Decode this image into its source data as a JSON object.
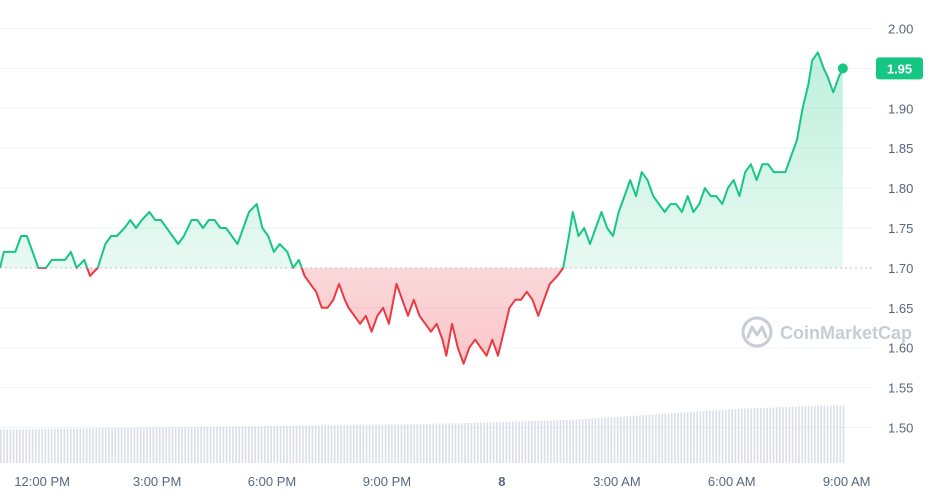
{
  "chart_data": {
    "type": "area",
    "baseline": 1.7,
    "current_price": "1.95",
    "ylim": [
      1.45,
      2.02
    ],
    "y_ticks": [
      "2.00",
      "1.95",
      "1.90",
      "1.85",
      "1.80",
      "1.75",
      "1.70",
      "1.65",
      "1.60",
      "1.55",
      "1.50"
    ],
    "x_ticks": [
      {
        "label": "12:00 PM",
        "hour": 1.1
      },
      {
        "label": "3:00 PM",
        "hour": 4.1
      },
      {
        "label": "6:00 PM",
        "hour": 7.1
      },
      {
        "label": "9:00 PM",
        "hour": 10.1
      },
      {
        "label": "8",
        "hour": 13.1,
        "bold": true
      },
      {
        "label": "3:00 AM",
        "hour": 16.1
      },
      {
        "label": "6:00 AM",
        "hour": 19.1
      },
      {
        "label": "9:00 AM",
        "hour": 22.1
      }
    ],
    "series": [
      {
        "points": [
          [
            0,
            1.7
          ],
          [
            0.1,
            1.72
          ],
          [
            0.25,
            1.72
          ],
          [
            0.4,
            1.72
          ],
          [
            0.55,
            1.74
          ],
          [
            0.7,
            1.74
          ],
          [
            0.85,
            1.72
          ],
          [
            1.0,
            1.7
          ],
          [
            1.2,
            1.7
          ],
          [
            1.35,
            1.71
          ],
          [
            1.5,
            1.71
          ],
          [
            1.7,
            1.71
          ],
          [
            1.85,
            1.72
          ],
          [
            2.0,
            1.7
          ],
          [
            2.2,
            1.71
          ],
          [
            2.35,
            1.69
          ],
          [
            2.55,
            1.7
          ],
          [
            2.75,
            1.73
          ],
          [
            2.9,
            1.74
          ],
          [
            3.05,
            1.74
          ],
          [
            3.25,
            1.75
          ],
          [
            3.4,
            1.76
          ],
          [
            3.55,
            1.75
          ],
          [
            3.7,
            1.76
          ],
          [
            3.9,
            1.77
          ],
          [
            4.05,
            1.76
          ],
          [
            4.2,
            1.76
          ],
          [
            4.35,
            1.75
          ],
          [
            4.5,
            1.74
          ],
          [
            4.65,
            1.73
          ],
          [
            4.8,
            1.74
          ],
          [
            5.0,
            1.76
          ],
          [
            5.15,
            1.76
          ],
          [
            5.3,
            1.75
          ],
          [
            5.45,
            1.76
          ],
          [
            5.6,
            1.76
          ],
          [
            5.75,
            1.75
          ],
          [
            5.9,
            1.75
          ],
          [
            6.05,
            1.74
          ],
          [
            6.2,
            1.73
          ],
          [
            6.35,
            1.75
          ],
          [
            6.5,
            1.77
          ],
          [
            6.7,
            1.78
          ],
          [
            6.85,
            1.75
          ],
          [
            7.0,
            1.74
          ],
          [
            7.15,
            1.72
          ],
          [
            7.3,
            1.73
          ],
          [
            7.5,
            1.72
          ],
          [
            7.65,
            1.7
          ],
          [
            7.8,
            1.71
          ],
          [
            7.95,
            1.69
          ],
          [
            8.1,
            1.68
          ],
          [
            8.25,
            1.67
          ],
          [
            8.4,
            1.65
          ],
          [
            8.55,
            1.65
          ],
          [
            8.7,
            1.66
          ],
          [
            8.85,
            1.68
          ],
          [
            9.0,
            1.66
          ],
          [
            9.1,
            1.65
          ],
          [
            9.25,
            1.64
          ],
          [
            9.4,
            1.63
          ],
          [
            9.55,
            1.64
          ],
          [
            9.7,
            1.62
          ],
          [
            9.85,
            1.64
          ],
          [
            10.0,
            1.65
          ],
          [
            10.15,
            1.63
          ],
          [
            10.35,
            1.68
          ],
          [
            10.5,
            1.66
          ],
          [
            10.65,
            1.64
          ],
          [
            10.8,
            1.66
          ],
          [
            10.95,
            1.64
          ],
          [
            11.1,
            1.63
          ],
          [
            11.25,
            1.62
          ],
          [
            11.4,
            1.63
          ],
          [
            11.55,
            1.61
          ],
          [
            11.65,
            1.59
          ],
          [
            11.8,
            1.63
          ],
          [
            11.95,
            1.6
          ],
          [
            12.1,
            1.58
          ],
          [
            12.25,
            1.6
          ],
          [
            12.4,
            1.61
          ],
          [
            12.55,
            1.6
          ],
          [
            12.7,
            1.59
          ],
          [
            12.85,
            1.61
          ],
          [
            13.0,
            1.59
          ],
          [
            13.15,
            1.62
          ],
          [
            13.3,
            1.65
          ],
          [
            13.45,
            1.66
          ],
          [
            13.6,
            1.66
          ],
          [
            13.75,
            1.67
          ],
          [
            13.9,
            1.66
          ],
          [
            14.05,
            1.64
          ],
          [
            14.2,
            1.66
          ],
          [
            14.35,
            1.68
          ],
          [
            14.55,
            1.69
          ],
          [
            14.7,
            1.7
          ],
          [
            14.85,
            1.74
          ],
          [
            14.95,
            1.77
          ],
          [
            15.1,
            1.74
          ],
          [
            15.25,
            1.75
          ],
          [
            15.4,
            1.73
          ],
          [
            15.55,
            1.75
          ],
          [
            15.7,
            1.77
          ],
          [
            15.85,
            1.75
          ],
          [
            16.0,
            1.74
          ],
          [
            16.15,
            1.77
          ],
          [
            16.3,
            1.79
          ],
          [
            16.45,
            1.81
          ],
          [
            16.6,
            1.79
          ],
          [
            16.75,
            1.82
          ],
          [
            16.9,
            1.81
          ],
          [
            17.05,
            1.79
          ],
          [
            17.2,
            1.78
          ],
          [
            17.35,
            1.77
          ],
          [
            17.5,
            1.78
          ],
          [
            17.65,
            1.78
          ],
          [
            17.8,
            1.77
          ],
          [
            17.95,
            1.79
          ],
          [
            18.1,
            1.77
          ],
          [
            18.25,
            1.78
          ],
          [
            18.4,
            1.8
          ],
          [
            18.55,
            1.79
          ],
          [
            18.7,
            1.79
          ],
          [
            18.85,
            1.78
          ],
          [
            19.0,
            1.8
          ],
          [
            19.15,
            1.81
          ],
          [
            19.3,
            1.79
          ],
          [
            19.45,
            1.82
          ],
          [
            19.6,
            1.83
          ],
          [
            19.75,
            1.81
          ],
          [
            19.9,
            1.83
          ],
          [
            20.05,
            1.83
          ],
          [
            20.2,
            1.82
          ],
          [
            20.35,
            1.82
          ],
          [
            20.5,
            1.82
          ],
          [
            20.65,
            1.84
          ],
          [
            20.8,
            1.86
          ],
          [
            20.95,
            1.9
          ],
          [
            21.1,
            1.93
          ],
          [
            21.2,
            1.96
          ],
          [
            21.35,
            1.97
          ],
          [
            21.5,
            1.95
          ],
          [
            21.6,
            1.94
          ],
          [
            21.75,
            1.92
          ],
          [
            21.9,
            1.94
          ],
          [
            22.0,
            1.95
          ]
        ]
      }
    ],
    "volume": [
      [
        0,
        1.2
      ],
      [
        1.5,
        1.22
      ],
      [
        3,
        1.25
      ],
      [
        4.5,
        1.28
      ],
      [
        6,
        1.3
      ],
      [
        7.5,
        1.33
      ],
      [
        9,
        1.36
      ],
      [
        10.5,
        1.38
      ],
      [
        12,
        1.42
      ],
      [
        13.5,
        1.48
      ],
      [
        15,
        1.55
      ],
      [
        16.5,
        1.68
      ],
      [
        18,
        1.82
      ],
      [
        19.5,
        1.95
      ],
      [
        20.5,
        2.0
      ],
      [
        21.5,
        2.05
      ],
      [
        22,
        2.05
      ]
    ]
  },
  "watermark": "CoinMarketCap",
  "colors": {
    "up": "#16c784",
    "down": "#ea3943",
    "grid": "#eff2f5",
    "baseline": "#c9ced6",
    "tick_text": "#58667e",
    "volume": "#cfd6e4"
  }
}
